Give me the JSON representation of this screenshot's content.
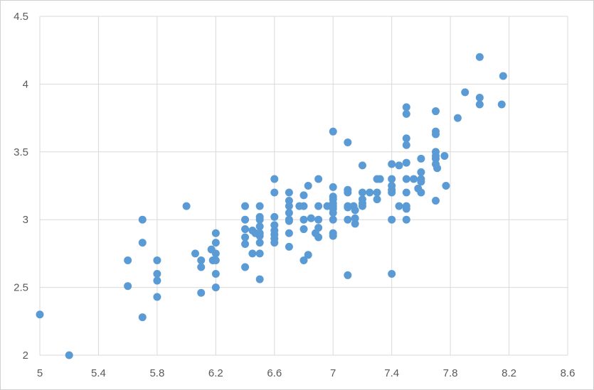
{
  "chart_data": {
    "type": "scatter",
    "title": "",
    "xlabel": "",
    "ylabel": "",
    "xlim": [
      5,
      8.6
    ],
    "ylim": [
      2,
      4.5
    ],
    "grid": true,
    "legend": "none",
    "marker_color": "#5b9bd5",
    "x_ticks": [
      "5",
      "5.4",
      "5.8",
      "6.2",
      "6.6",
      "7",
      "7.4",
      "7.8",
      "8.2",
      "8.6"
    ],
    "y_ticks": [
      "2",
      "2.5",
      "3",
      "3.5",
      "4",
      "4.5"
    ],
    "series": [
      {
        "points": [
          [
            5.0,
            2.3
          ],
          [
            5.2,
            2.0
          ],
          [
            5.6,
            2.7
          ],
          [
            5.6,
            2.51
          ],
          [
            5.7,
            3.0
          ],
          [
            5.7,
            2.83
          ],
          [
            5.7,
            2.28
          ],
          [
            5.8,
            2.7
          ],
          [
            5.8,
            2.6
          ],
          [
            5.8,
            2.55
          ],
          [
            5.8,
            2.43
          ],
          [
            6.0,
            3.1
          ],
          [
            6.06,
            2.75
          ],
          [
            6.1,
            2.7
          ],
          [
            6.1,
            2.65
          ],
          [
            6.1,
            2.46
          ],
          [
            6.17,
            2.78
          ],
          [
            6.18,
            2.7
          ],
          [
            6.2,
            2.9
          ],
          [
            6.2,
            2.83
          ],
          [
            6.2,
            2.75
          ],
          [
            6.2,
            2.7
          ],
          [
            6.2,
            2.6
          ],
          [
            6.2,
            2.5
          ],
          [
            6.4,
            3.1
          ],
          [
            6.4,
            3.0
          ],
          [
            6.4,
            2.93
          ],
          [
            6.4,
            2.87
          ],
          [
            6.4,
            2.82
          ],
          [
            6.4,
            2.65
          ],
          [
            6.45,
            2.92
          ],
          [
            6.45,
            2.75
          ],
          [
            6.47,
            2.9
          ],
          [
            6.5,
            3.1
          ],
          [
            6.5,
            3.02
          ],
          [
            6.5,
            3.0
          ],
          [
            6.5,
            2.95
          ],
          [
            6.5,
            2.9
          ],
          [
            6.5,
            2.88
          ],
          [
            6.5,
            2.83
          ],
          [
            6.5,
            2.75
          ],
          [
            6.5,
            2.56
          ],
          [
            6.6,
            3.3
          ],
          [
            6.6,
            3.2
          ],
          [
            6.6,
            3.02
          ],
          [
            6.6,
            2.96
          ],
          [
            6.6,
            2.92
          ],
          [
            6.6,
            2.89
          ],
          [
            6.6,
            2.86
          ],
          [
            6.6,
            2.83
          ],
          [
            6.7,
            3.2
          ],
          [
            6.7,
            3.14
          ],
          [
            6.7,
            3.1
          ],
          [
            6.7,
            3.05
          ],
          [
            6.7,
            3.0
          ],
          [
            6.7,
            2.99
          ],
          [
            6.7,
            2.9
          ],
          [
            6.7,
            2.8
          ],
          [
            6.77,
            3.1
          ],
          [
            6.8,
            3.18
          ],
          [
            6.8,
            3.1
          ],
          [
            6.8,
            3.0
          ],
          [
            6.8,
            2.93
          ],
          [
            6.8,
            2.7
          ],
          [
            6.83,
            3.25
          ],
          [
            6.83,
            2.74
          ],
          [
            6.85,
            3.01
          ],
          [
            6.88,
            2.9
          ],
          [
            6.9,
            3.3
          ],
          [
            6.9,
            3.1
          ],
          [
            6.9,
            3.0
          ],
          [
            6.9,
            2.94
          ],
          [
            6.9,
            2.87
          ],
          [
            6.96,
            3.1
          ],
          [
            7.0,
            3.65
          ],
          [
            7.0,
            3.24
          ],
          [
            7.0,
            3.17
          ],
          [
            7.0,
            3.15
          ],
          [
            7.0,
            3.12
          ],
          [
            7.0,
            3.1
          ],
          [
            7.0,
            3.08
          ],
          [
            7.0,
            3.05
          ],
          [
            7.0,
            3.0
          ],
          [
            7.0,
            2.9
          ],
          [
            7.0,
            2.88
          ],
          [
            7.1,
            3.57
          ],
          [
            7.1,
            3.22
          ],
          [
            7.1,
            3.2
          ],
          [
            7.1,
            3.1
          ],
          [
            7.1,
            3.09
          ],
          [
            7.1,
            3.0
          ],
          [
            7.1,
            2.59
          ],
          [
            7.14,
            3.1
          ],
          [
            7.15,
            3.07
          ],
          [
            7.15,
            3.01
          ],
          [
            7.15,
            2.97
          ],
          [
            7.2,
            3.4
          ],
          [
            7.2,
            3.2
          ],
          [
            7.2,
            3.15
          ],
          [
            7.2,
            3.12
          ],
          [
            7.2,
            3.1
          ],
          [
            7.25,
            3.2
          ],
          [
            7.3,
            3.3
          ],
          [
            7.3,
            3.2
          ],
          [
            7.3,
            3.15
          ],
          [
            7.32,
            3.3
          ],
          [
            7.4,
            3.41
          ],
          [
            7.4,
            3.3
          ],
          [
            7.4,
            3.25
          ],
          [
            7.4,
            3.22
          ],
          [
            7.4,
            3.2
          ],
          [
            7.4,
            3.0
          ],
          [
            7.4,
            2.6
          ],
          [
            7.45,
            3.4
          ],
          [
            7.45,
            3.1
          ],
          [
            7.5,
            3.83
          ],
          [
            7.5,
            3.78
          ],
          [
            7.5,
            3.6
          ],
          [
            7.5,
            3.55
          ],
          [
            7.5,
            3.42
          ],
          [
            7.5,
            3.3
          ],
          [
            7.5,
            3.2
          ],
          [
            7.5,
            3.1
          ],
          [
            7.5,
            3.08
          ],
          [
            7.5,
            3.0
          ],
          [
            7.55,
            3.3
          ],
          [
            7.58,
            3.23
          ],
          [
            7.6,
            3.45
          ],
          [
            7.6,
            3.35
          ],
          [
            7.6,
            3.3
          ],
          [
            7.6,
            3.28
          ],
          [
            7.6,
            3.2
          ],
          [
            7.7,
            3.8
          ],
          [
            7.7,
            3.65
          ],
          [
            7.7,
            3.63
          ],
          [
            7.7,
            3.5
          ],
          [
            7.7,
            3.47
          ],
          [
            7.7,
            3.45
          ],
          [
            7.7,
            3.41
          ],
          [
            7.71,
            3.38
          ],
          [
            7.7,
            3.14
          ],
          [
            7.76,
            3.47
          ],
          [
            7.77,
            3.25
          ],
          [
            7.85,
            3.75
          ],
          [
            7.9,
            3.94
          ],
          [
            8.0,
            4.2
          ],
          [
            8.0,
            3.9
          ],
          [
            8.0,
            3.85
          ],
          [
            8.15,
            3.85
          ],
          [
            8.16,
            4.06
          ]
        ]
      }
    ]
  }
}
